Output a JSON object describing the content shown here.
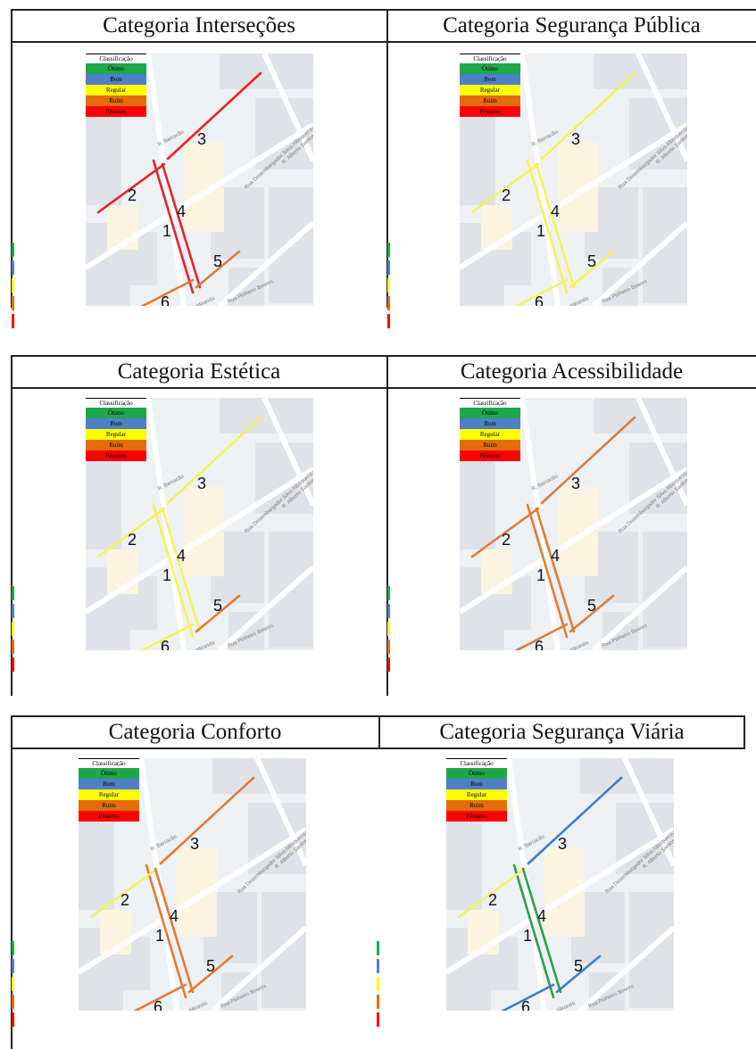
{
  "panels": [
    {
      "title": "Categoria Interseções",
      "colors": {
        "s1": "#e3242b",
        "s2": "#e3242b",
        "s3": "#e3242b",
        "s4": "#e3242b",
        "s5": "#e07b39",
        "s6": "#e07b39"
      }
    },
    {
      "title": "Categoria Segurança Pública",
      "colors": {
        "s1": "#f3f35a",
        "s2": "#f3f35a",
        "s3": "#f3f35a",
        "s4": "#f3f35a",
        "s5": "#f3f35a",
        "s6": "#f3f35a"
      }
    },
    {
      "title": "Categoria Estética",
      "colors": {
        "s1": "#f3f35a",
        "s2": "#f3f35a",
        "s3": "#f3f35a",
        "s4": "#f3f35a",
        "s5": "#e07b39",
        "s6": "#f3f35a"
      }
    },
    {
      "title": "Categoria Acessibilidade",
      "colors": {
        "s1": "#e07b39",
        "s2": "#e07b39",
        "s3": "#e07b39",
        "s4": "#e07b39",
        "s5": "#e07b39",
        "s6": "#e07b39"
      }
    },
    {
      "title": "Categoria Conforto",
      "colors": {
        "s1": "#e07b39",
        "s2": "#f3f35a",
        "s3": "#e07b39",
        "s4": "#e07b39",
        "s5": "#e07b39",
        "s6": "#e07b39"
      }
    },
    {
      "title": "Categoria Segurança Viária",
      "colors": {
        "s1": "#2e9e4a",
        "s2": "#f3f35a",
        "s3": "#3f7fbf",
        "s4": "#2e9e4a",
        "s5": "#3f7fbf",
        "s6": "#3f7fbf"
      }
    }
  ],
  "legend": {
    "title": "Classificação",
    "items": [
      {
        "label": "Ótimo",
        "color": "#1fa84a"
      },
      {
        "label": "Bom",
        "color": "#4f7fc7"
      },
      {
        "label": "Regular",
        "color": "#ffff00"
      },
      {
        "label": "Ruim",
        "color": "#e46c0a"
      },
      {
        "label": "Péssimo",
        "color": "#ff0000"
      }
    ]
  },
  "segment_labels": [
    "1",
    "2",
    "3",
    "4",
    "5",
    "6"
  ],
  "street_names": [
    "R. Barracão",
    "Rua Desembargador Silva Albuquerque",
    "R. Miranda",
    "Rua Pinheiro Soares",
    "R. Alberto Santos"
  ],
  "marker_colors": [
    "#1fa84a",
    "#4f7fc7",
    "#ffff00",
    "#e46c0a",
    "#ff0000"
  ]
}
